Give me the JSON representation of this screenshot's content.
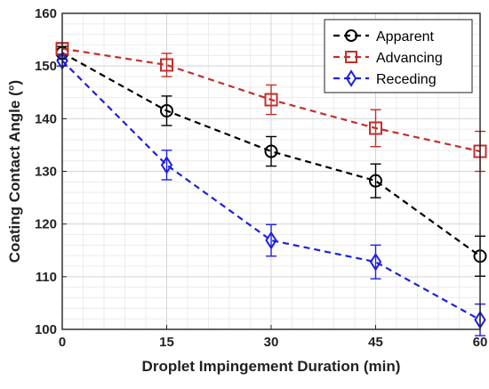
{
  "chart_data": {
    "type": "line",
    "title": "",
    "xlabel": "Droplet Impingement Duration (min)",
    "ylabel": "Coating Contact Angle (°)",
    "x": [
      0,
      15,
      30,
      45,
      60
    ],
    "xlim": [
      0,
      60
    ],
    "ylim": [
      100,
      160
    ],
    "xticks": [
      "0",
      "15",
      "30",
      "45",
      "60"
    ],
    "yticks": [
      "100",
      "110",
      "120",
      "130",
      "140",
      "150",
      "160"
    ],
    "grid": true,
    "minor_grid": true,
    "legend_position": "top-right",
    "series": [
      {
        "name": "Apparent",
        "color": "#000000",
        "marker": "circle",
        "line_style": "dashed",
        "values": [
          152.5,
          141.5,
          133.8,
          128.2,
          113.9
        ],
        "errors": [
          1.2,
          2.8,
          2.8,
          3.2,
          3.8
        ]
      },
      {
        "name": "Advancing",
        "color": "#c0302b",
        "marker": "square",
        "line_style": "dashed",
        "values": [
          153.3,
          150.2,
          143.6,
          138.2,
          133.8
        ],
        "errors": [
          1.0,
          2.2,
          2.8,
          3.5,
          3.8
        ]
      },
      {
        "name": "Receding",
        "color": "#1f1fe0",
        "marker": "diamond",
        "line_style": "dashed",
        "values": [
          151.0,
          131.2,
          116.9,
          112.8,
          101.8
        ],
        "errors": [
          1.0,
          2.8,
          3.0,
          3.2,
          3.0
        ]
      }
    ]
  }
}
